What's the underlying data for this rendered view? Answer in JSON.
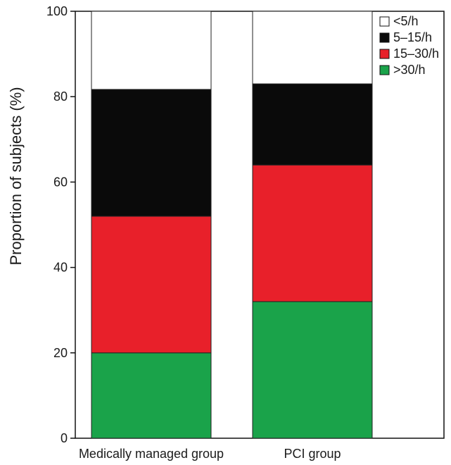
{
  "chart_data": {
    "type": "bar",
    "stacked": true,
    "title": "",
    "xlabel": "",
    "ylabel": "Proportion of subjects (%)",
    "ylim": [
      0,
      100
    ],
    "yticks": [
      0,
      20,
      40,
      60,
      80,
      100
    ],
    "categories": [
      "Medically managed group",
      "PCI group"
    ],
    "series": [
      {
        "name": ">30/h",
        "color": "#1aa34a",
        "values": [
          20,
          32
        ]
      },
      {
        "name": "15–30/h",
        "color": "#e8202a",
        "values": [
          32,
          32
        ]
      },
      {
        "name": "5–15/h",
        "color": "#0a0a0a",
        "values": [
          29.7,
          19
        ]
      },
      {
        "name": "<5/h",
        "color": "#ffffff",
        "values": [
          18.3,
          17
        ]
      }
    ],
    "legend_order": [
      "<5/h",
      "5–15/h",
      "15–30/h",
      ">30/h"
    ],
    "legend_position": "top-right",
    "grid": false
  }
}
